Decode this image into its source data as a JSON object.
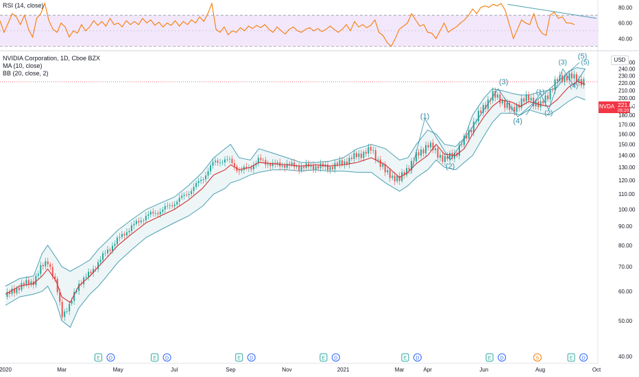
{
  "rsi_panel": {
    "legend": "RSI (14, close)",
    "ticks": [
      "80.00",
      "60.00",
      "40.00"
    ],
    "tick_values": [
      80,
      60,
      40
    ],
    "band_upper": 70,
    "band_lower": 30,
    "values": [
      63,
      48,
      60,
      72,
      68,
      58,
      70,
      52,
      42,
      66,
      72,
      85,
      63,
      52,
      48,
      60,
      55,
      42,
      50,
      47,
      58,
      50,
      55,
      63,
      57,
      62,
      56,
      66,
      58,
      60,
      55,
      63,
      58,
      62,
      58,
      66,
      60,
      64,
      57,
      61,
      55,
      60,
      57,
      63,
      56,
      62,
      58,
      64,
      60,
      68,
      62,
      72,
      85,
      52,
      48,
      55,
      45,
      50,
      48,
      54,
      50,
      56,
      53,
      57,
      54,
      58,
      52,
      48,
      55,
      50,
      46,
      52,
      55,
      50,
      48,
      52,
      54,
      50,
      53,
      49,
      52,
      56,
      52,
      48,
      52,
      58,
      50,
      62,
      55,
      58,
      54,
      57,
      64,
      48,
      44,
      35,
      30,
      40,
      52,
      56,
      60,
      72,
      64,
      56,
      58,
      48,
      47,
      40,
      50,
      60,
      48,
      52,
      55,
      60,
      64,
      70,
      78,
      72,
      80,
      82,
      80,
      84,
      82,
      85,
      76,
      58,
      40,
      52,
      64,
      60,
      58,
      72,
      55,
      47,
      44,
      70,
      74,
      66,
      68,
      60,
      60,
      58
    ],
    "trendline": {
      "start_value": 84,
      "end_value": 66
    },
    "colors": {
      "line": "#f57c00",
      "band": "#e9d4fa",
      "trendline": "#4a9fb1"
    }
  },
  "legend": {
    "symbol": "NVIDIA Corporation, 1D, Cboe BZX",
    "ma": "MA (10, close)",
    "bb": "BB (20, close, 2)"
  },
  "price_axis": {
    "currency": "USD",
    "ticks": [
      "250.00",
      "240.00",
      "230.00",
      "220.00",
      "210.00",
      "200.00",
      "190.00",
      "180.00",
      "170.00",
      "160.00",
      "150.00",
      "140.00",
      "130.00",
      "120.00",
      "110.00",
      "100.00",
      "90.00",
      "80.00",
      "70.00",
      "60.00",
      "50.00",
      "40.00"
    ],
    "log_scale": true,
    "range": [
      39,
      262
    ]
  },
  "last_price": {
    "symbol": "NVDA",
    "price": "221.60",
    "countdown": "05:20:37",
    "value": 221.6,
    "color": "#f23645"
  },
  "time_axis": {
    "labels": [
      "2020",
      "Mar",
      "May",
      "Jul",
      "Sep",
      "Nov",
      "2021",
      "Mar",
      "Apr",
      "Jun",
      "Aug",
      "Oct"
    ],
    "label_month_index": [
      0,
      2,
      4,
      6,
      8,
      10,
      12,
      14,
      15,
      17,
      19,
      21
    ]
  },
  "events": [
    {
      "month": 3.3,
      "marks": [
        "E",
        "D"
      ]
    },
    {
      "month": 5.3,
      "marks": [
        "E",
        "D"
      ]
    },
    {
      "month": 8.3,
      "marks": [
        "E",
        "D"
      ]
    },
    {
      "month": 11.3,
      "marks": [
        "E",
        "D"
      ]
    },
    {
      "month": 14.2,
      "marks": [
        "E",
        "D"
      ]
    },
    {
      "month": 17.2,
      "marks": [
        "E",
        "D"
      ]
    },
    {
      "month": 18.9,
      "marks": [
        "S"
      ]
    },
    {
      "month": 20.1,
      "marks": [
        "E",
        "D"
      ]
    }
  ],
  "event_colors": {
    "E": "#26a69a",
    "D": "#2962ff",
    "S": "#f57c00"
  },
  "chart_data": {
    "type": "line",
    "title": "NVIDIA Corporation, 1D, Cboe BZX",
    "x_unit": "months since Jan 2020",
    "series": [
      {
        "name": "MA (10, close)",
        "color": "#d32f2f",
        "x": [
          0,
          0.5,
          1,
          1.3,
          1.5,
          1.8,
          2,
          2.3,
          2.6,
          3,
          3.3,
          3.6,
          4,
          4.5,
          5,
          5.5,
          6,
          6.5,
          7,
          7.4,
          7.8,
          8,
          8.3,
          8.7,
          9,
          9.5,
          10,
          10.5,
          11,
          11.5,
          12,
          12.5,
          13,
          13.5,
          14,
          14.3,
          14.6,
          15,
          15.3,
          15.6,
          16,
          16.3,
          16.6,
          17,
          17.3,
          17.6,
          18,
          18.3,
          18.6,
          19,
          19.3,
          19.6,
          20,
          20.3,
          20.6
        ],
        "values": [
          59,
          62,
          63,
          66,
          69,
          64,
          58,
          56,
          62,
          66,
          70,
          74,
          80,
          86,
          92,
          96,
          100,
          106,
          114,
          124,
          128,
          132,
          128,
          130,
          134,
          133,
          132,
          131,
          132,
          131,
          132,
          134,
          138,
          132,
          122,
          126,
          133,
          140,
          150,
          141,
          140,
          146,
          160,
          178,
          190,
          198,
          195,
          190,
          196,
          192,
          190,
          198,
          214,
          222,
          218
        ]
      },
      {
        "name": "BB (20, close, 2) upper",
        "color": "#4a9fb1",
        "values": [
          62,
          65,
          66,
          76,
          80,
          74,
          70,
          68,
          70,
          73,
          78,
          82,
          88,
          94,
          100,
          104,
          108,
          116,
          126,
          138,
          146,
          150,
          138,
          136,
          146,
          142,
          138,
          134,
          134,
          135,
          138,
          146,
          150,
          146,
          136,
          138,
          150,
          164,
          160,
          150,
          148,
          156,
          180,
          200,
          212,
          210,
          206,
          204,
          204,
          208,
          210,
          214,
          236,
          242,
          240
        ]
      },
      {
        "name": "BB (20, close, 2) lower",
        "color": "#4a9fb1",
        "values": [
          55,
          58,
          59,
          60,
          62,
          56,
          50,
          48,
          54,
          59,
          62,
          66,
          72,
          78,
          84,
          88,
          92,
          96,
          102,
          110,
          114,
          118,
          120,
          124,
          126,
          128,
          128,
          127,
          128,
          127,
          127,
          126,
          126,
          118,
          112,
          116,
          122,
          128,
          136,
          130,
          128,
          134,
          140,
          158,
          172,
          182,
          182,
          180,
          186,
          182,
          180,
          186,
          196,
          202,
          198
        ]
      },
      {
        "name": "Price",
        "color": "#26a69a",
        "values": [
          58,
          62,
          64,
          70,
          73,
          62,
          52,
          55,
          63,
          67,
          72,
          77,
          83,
          90,
          96,
          99,
          104,
          111,
          121,
          134,
          136,
          135,
          127,
          130,
          136,
          132,
          132,
          130,
          131,
          130,
          134,
          140,
          145,
          126,
          120,
          130,
          139,
          150,
          143,
          136,
          142,
          154,
          169,
          190,
          204,
          198,
          184,
          196,
          200,
          190,
          206,
          224,
          230,
          224,
          222
        ]
      }
    ],
    "elliott_waves": [
      {
        "label": "(1)",
        "month": 14.9,
        "value": 176,
        "sub": false
      },
      {
        "label": "(2)",
        "month": 15.8,
        "value": 129,
        "sub": false
      },
      {
        "label": "(3)",
        "month": 17.7,
        "value": 218,
        "sub": false
      },
      {
        "label": "(4)",
        "month": 18.2,
        "value": 171,
        "sub": false
      },
      {
        "label": "(5)",
        "month": 20.5,
        "value": 256,
        "sub": false
      },
      {
        "label": "(1)",
        "month": 19.0,
        "value": 205,
        "sub": true
      },
      {
        "label": "(2)",
        "month": 19.3,
        "value": 180,
        "sub": true
      },
      {
        "label": "(3)",
        "month": 19.8,
        "value": 247,
        "sub": true
      },
      {
        "label": "(4)",
        "month": 20.2,
        "value": 213,
        "sub": true
      },
      {
        "label": "(5)",
        "month": 20.6,
        "value": 247,
        "sub": true
      }
    ],
    "wave_paths": [
      {
        "months": [
          14.4,
          14.9,
          15.8,
          17.5,
          18.2,
          20.4
        ],
        "values": [
          125,
          176,
          136,
          212,
          178,
          250
        ]
      },
      {
        "months": [
          18.5,
          19.0,
          19.3,
          19.8,
          20.2,
          20.6
        ],
        "values": [
          180,
          206,
          186,
          240,
          216,
          240
        ]
      }
    ],
    "rsi_ylim": [
      28,
      86
    ]
  }
}
